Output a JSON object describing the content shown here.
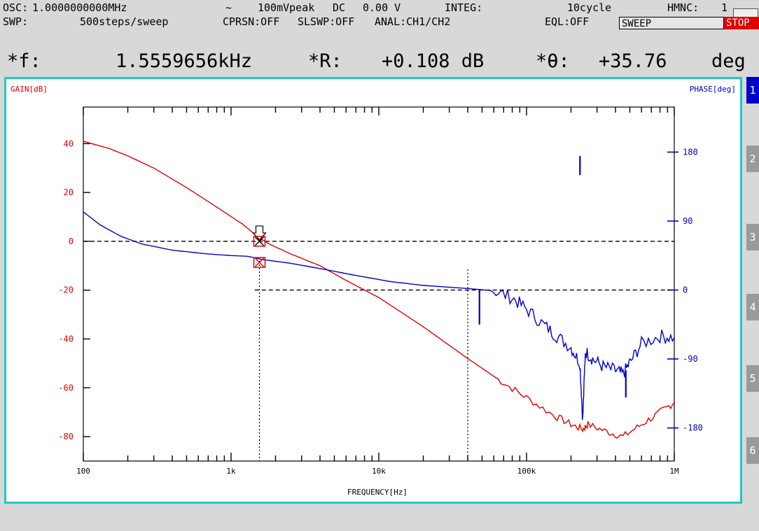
{
  "status": {
    "osc_label": "OSC:",
    "osc_value": "1.0000000000MHz",
    "wave_symbol": "~",
    "amplitude": "100mVpeak",
    "dc_label": "DC",
    "dc_value": "0.00 V",
    "integ_label": "INTEG:",
    "integ_value": "10cycle",
    "hmnc_label": "HMNC:",
    "hmnc_value": "1",
    "swp_label": "SWP:",
    "swp_value": "500steps/sweep",
    "cprsn": "CPRSN:OFF",
    "slswp": "SLSWP:OFF",
    "anal": "ANAL:CH1/CH2",
    "eql": "EQL:OFF",
    "sweep_box": "SWEEP",
    "stop_box": "STOP"
  },
  "readout": {
    "f_label": "*f:",
    "f_value": "1.5559656kHz",
    "r_label": "*R:",
    "r_value": "+0.108 dB",
    "theta_label": "*θ:",
    "theta_value": "+35.76",
    "theta_unit": "deg"
  },
  "side_tabs": [
    "1",
    "2",
    "3",
    "4",
    "5",
    "6"
  ],
  "colors": {
    "gain": "#e00000",
    "phase": "#0000c8",
    "frame": "#20c8c8",
    "tab_active": "#0000c8",
    "tab_inactive": "#9a9a9a"
  },
  "chart_data": {
    "type": "line",
    "left_axis_label": "GAIN[dB]",
    "right_axis_label": "PHASE[deg]",
    "xlabel": "FREQUENCY[Hz]",
    "x_scale": "log",
    "xlim": [
      100,
      1000000
    ],
    "x_tick_labels": [
      {
        "value": 100,
        "label": "100"
      },
      {
        "value": 1000,
        "label": "1k"
      },
      {
        "value": 10000,
        "label": "10k"
      },
      {
        "value": 100000,
        "label": "100k"
      },
      {
        "value": 1000000,
        "label": "1M"
      }
    ],
    "gain_ylim": [
      -90,
      55
    ],
    "gain_ticks": [
      40,
      20,
      0,
      -20,
      -40,
      -60,
      -80
    ],
    "phase_ylim": [
      -223.2,
      238.8
    ],
    "phase_ticks": [
      180,
      90,
      0,
      -90,
      -180
    ],
    "series": [
      {
        "axis": "left",
        "color": "#e00000",
        "points": [
          [
            100,
            41
          ],
          [
            150,
            38
          ],
          [
            200,
            35
          ],
          [
            300,
            30
          ],
          [
            500,
            22
          ],
          [
            800,
            14
          ],
          [
            1200,
            7
          ],
          [
            1500,
            2
          ],
          [
            1800,
            -1
          ],
          [
            2500,
            -5
          ],
          [
            4000,
            -10
          ],
          [
            6000,
            -16
          ],
          [
            10000,
            -23
          ],
          [
            20000,
            -35
          ],
          [
            40000,
            -48
          ],
          [
            50000,
            -52
          ],
          [
            70000,
            -58
          ],
          [
            100000,
            -64
          ],
          [
            150000,
            -71
          ],
          [
            200000,
            -75
          ],
          [
            240000,
            -77
          ],
          [
            260000,
            -75
          ],
          [
            350000,
            -78
          ],
          [
            450000,
            -80
          ],
          [
            600000,
            -75
          ],
          [
            800000,
            -70
          ],
          [
            1000000,
            -66
          ]
        ]
      },
      {
        "axis": "right",
        "color": "#0000c8",
        "points": [
          [
            100,
            102
          ],
          [
            130,
            85
          ],
          [
            180,
            70
          ],
          [
            250,
            60
          ],
          [
            400,
            52
          ],
          [
            700,
            47
          ],
          [
            1000,
            45
          ],
          [
            1300,
            44
          ],
          [
            1600,
            40
          ],
          [
            2500,
            35
          ],
          [
            4000,
            28
          ],
          [
            7000,
            19
          ],
          [
            12000,
            11
          ],
          [
            20000,
            6
          ],
          [
            40000,
            2
          ],
          [
            60000,
            -1
          ],
          [
            80000,
            -10
          ],
          [
            100000,
            -25
          ],
          [
            130000,
            -45
          ],
          [
            160000,
            -60
          ],
          [
            200000,
            -75
          ],
          [
            230000,
            -95
          ],
          [
            240000,
            -170
          ],
          [
            250000,
            -80
          ],
          [
            280000,
            -90
          ],
          [
            330000,
            -100
          ],
          [
            400000,
            -105
          ],
          [
            450000,
            -110
          ],
          [
            500000,
            -95
          ],
          [
            600000,
            -70
          ],
          [
            800000,
            -60
          ],
          [
            1000000,
            -62
          ]
        ]
      }
    ],
    "phase_spikes": [
      {
        "x": 48000,
        "y_from": 0,
        "y_to": -45
      },
      {
        "x": 230000,
        "y_from": 150,
        "y_to": 175
      },
      {
        "x": 470000,
        "y_from": -105,
        "y_to": -140
      }
    ],
    "gain_reference_db": 0,
    "phase_reference_deg": 0,
    "marker_frequency": 1555.9656,
    "cursor2_frequency": 40000
  }
}
